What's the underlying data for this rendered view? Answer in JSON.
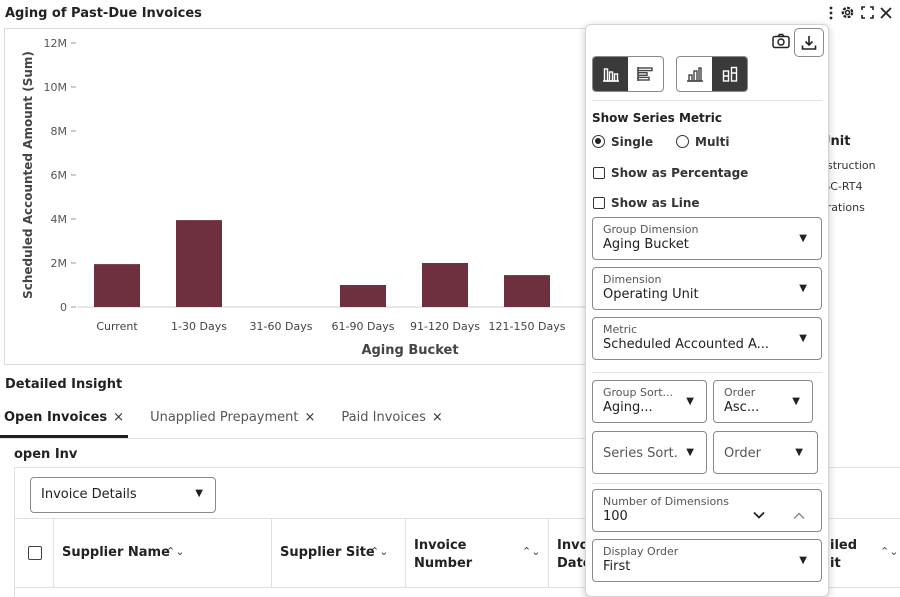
{
  "header": {
    "title": "Aging of Past-Due Invoices",
    "icons": [
      "kebab-menu-icon",
      "gear-icon",
      "expand-icon",
      "close-icon"
    ]
  },
  "chart_data": {
    "type": "bar",
    "ylabel": "Scheduled Accounted Amount (Sum)",
    "xlabel": "Aging Bucket",
    "y_ticks": [
      "0",
      "2M",
      "4M",
      "6M",
      "8M",
      "10M",
      "12M"
    ],
    "ylim": [
      0,
      12000000
    ],
    "categories": [
      "Current",
      "1-30 Days",
      "31-60 Days",
      "61-90 Days",
      "91-120 Days",
      "121-150 Days"
    ],
    "values": [
      1950000,
      3950000,
      0,
      1000000,
      2000000,
      1450000
    ],
    "bar_color": "#6e2f3f",
    "grid": false
  },
  "legend_peek": {
    "title": "Unit",
    "items": [
      "nstruction",
      "ISC-RT4",
      "erations"
    ]
  },
  "insight": {
    "title": "Detailed Insight",
    "tabs": [
      {
        "label": "Open Invoices",
        "active": true
      },
      {
        "label": "Unapplied Prepayment",
        "active": false
      },
      {
        "label": "Paid Invoices",
        "active": false
      }
    ],
    "close_glyph": "×",
    "section_label": "open Inv",
    "view_select": "Invoice Details"
  },
  "table": {
    "columns": [
      "Supplier Name",
      "Supplier Site",
      "Invoice Number",
      "Invo Date",
      "iled it"
    ]
  },
  "panel": {
    "icons": [
      "camera-icon",
      "download-icon"
    ],
    "show_series_metric": "Show Series Metric",
    "radio_single": "Single",
    "radio_multi": "Multi",
    "show_percentage": "Show as Percentage",
    "show_line": "Show as Line",
    "group_dimension": {
      "label": "Group Dimension",
      "value": "Aging Bucket"
    },
    "dimension": {
      "label": "Dimension",
      "value": "Operating Unit"
    },
    "metric": {
      "label": "Metric",
      "value": "Scheduled Accounted A..."
    },
    "group_sort": {
      "label": "Group Sort...",
      "value": "Aging..."
    },
    "order": {
      "label": "Order",
      "value": "Asc..."
    },
    "series_sort": "Series Sort.",
    "series_order": "Order",
    "num_dimensions": {
      "label": "Number of Dimensions",
      "value": "100"
    },
    "display_order": {
      "label": "Display Order",
      "value": "First"
    }
  }
}
